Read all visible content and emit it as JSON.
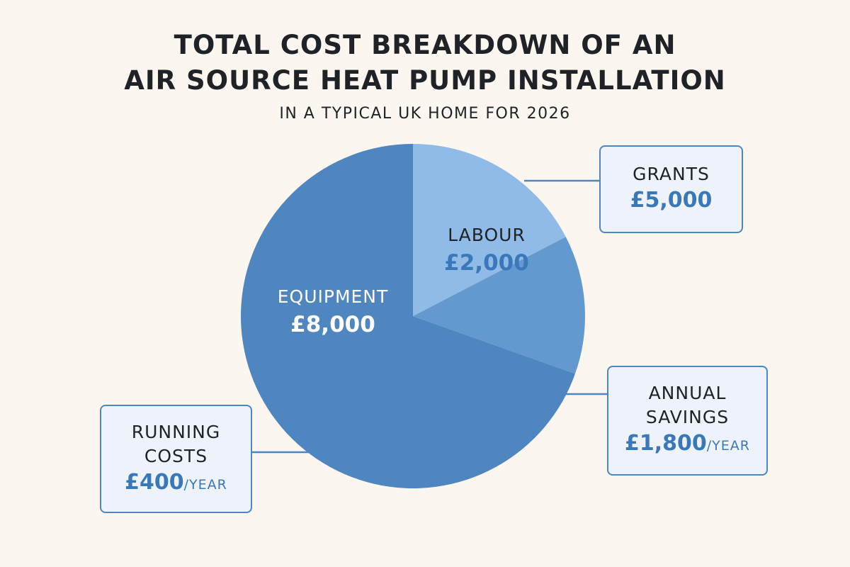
{
  "title_line1": "TOTAL COST BREAKDOWN OF AN",
  "title_line2": "AIR SOURCE HEAT PUMP INSTALLATION",
  "subtitle": "IN A TYPICAL UK HOME FOR 2026",
  "colors": {
    "equipment": "#4f86bf",
    "labour": "#8fbbe6",
    "third_slice": "#6399cf",
    "callout_border": "#4f86c0",
    "callout_bg": "#eef3fb",
    "value_text": "#3a78b9"
  },
  "chart_data": {
    "type": "pie",
    "slices": [
      {
        "label": "LABOUR",
        "value_text": "£2,000",
        "value": 2000,
        "color": "#8fbbe6"
      },
      {
        "label": "",
        "value_text": "",
        "value": 1500,
        "color": "#6399cf"
      },
      {
        "label": "EQUIPMENT",
        "value_text": "£8,000",
        "value": 8000,
        "color": "#4f86bf"
      }
    ],
    "callouts": [
      {
        "label": "GRANTS",
        "value": "£5,000",
        "unit": ""
      },
      {
        "label_line1": "ANNUAL",
        "label_line2": "SAVINGS",
        "value": "£1,800",
        "unit": "/YEAR"
      },
      {
        "label_line1": "RUNNING",
        "label_line2": "COSTS",
        "value": "£400",
        "unit": "/YEAR"
      }
    ]
  }
}
